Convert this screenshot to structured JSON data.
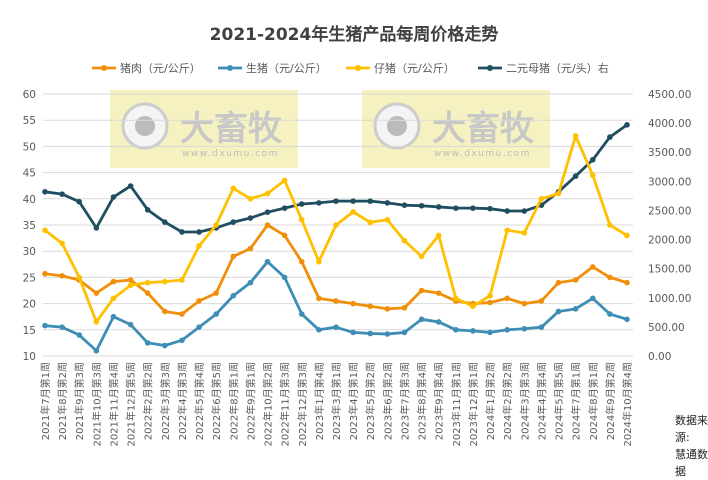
{
  "chart_data": {
    "type": "line",
    "title": "2021-2024年生猪产品每周价格走势",
    "source": [
      "数据来源:",
      "慧通数据"
    ],
    "watermark": {
      "logo_text": "大畜牧",
      "url_text": "www.dxumu.com"
    },
    "legend_position": "top",
    "grid": true,
    "y_left": {
      "ticks": [
        10,
        15,
        20,
        25,
        30,
        35,
        40,
        45,
        50,
        55,
        60
      ],
      "range": [
        10,
        60
      ]
    },
    "y_right": {
      "ticks": [
        "0.00",
        "500.00",
        "1000.00",
        "1500.00",
        "2000.00",
        "2500.00",
        "3000.00",
        "3500.00",
        "4000.00",
        "4500.00"
      ],
      "range": [
        0,
        4500
      ]
    },
    "categories": [
      "2021年7月第1周",
      "2021年8月第2周",
      "2021年9月第3周",
      "2021年10月第3周",
      "2021年11月第4周",
      "2021年12月第5周",
      "2022年2月第2周",
      "2022年3月第3周",
      "2022年4月第3周",
      "2022年5月第4周",
      "2022年6月第5周",
      "2022年8月第1周",
      "2022年9月第1周",
      "2022年10月第2周",
      "2022年11月第3周",
      "2022年12月第3周",
      "2023年1月第4周",
      "2023年3月第1周",
      "2023年4月第1周",
      "2023年5月第2周",
      "2023年6月第2周",
      "2023年7月第3周",
      "2023年8月第4周",
      "2023年9月第4周",
      "2023年11月第1周",
      "2023年12月第1周",
      "2024年1月第2周",
      "2024年2月第2周",
      "2024年3月第3周",
      "2024年4月第4周",
      "2024年5月第5周",
      "2024年7月第1周",
      "2024年8月第1周",
      "2024年9月第2周",
      "2024年10月第4周"
    ],
    "series": [
      {
        "name": "猪肉（元/公斤）",
        "axis": "left",
        "color": "#F0900A",
        "values": [
          25.7,
          25.3,
          24.5,
          22,
          24.2,
          24.5,
          22,
          18.5,
          18,
          20.5,
          22,
          29,
          30.5,
          35,
          33,
          28,
          21,
          20.5,
          20,
          19.5,
          19,
          19.2,
          22.5,
          22,
          20.5,
          20,
          20.2,
          21,
          20,
          20.5,
          24,
          24.5,
          27,
          25,
          24
        ]
      },
      {
        "name": "生猪（元/公斤）",
        "axis": "left",
        "color": "#3E8DB5",
        "values": [
          15.8,
          15.5,
          14,
          11,
          17.5,
          16,
          12.5,
          12,
          13,
          15.5,
          18,
          21.5,
          24,
          28,
          25,
          18,
          15,
          15.5,
          14.5,
          14.3,
          14.2,
          14.5,
          17,
          16.5,
          15,
          14.8,
          14.5,
          15,
          15.2,
          15.5,
          18.5,
          19,
          21,
          18,
          17
        ]
      },
      {
        "name": "仔猪（元/公斤）",
        "axis": "left",
        "color": "#FFC000",
        "values": [
          34,
          31.5,
          25,
          16.5,
          21,
          23.5,
          24,
          24.2,
          24.5,
          31,
          35,
          42,
          40,
          41,
          43.5,
          36,
          28,
          35,
          37.5,
          35.5,
          36,
          32,
          29,
          33,
          21,
          19.5,
          21.5,
          34,
          33.5,
          40,
          41,
          52,
          44.5,
          35,
          33
        ]
      },
      {
        "name": "二元母猪（元/头）右",
        "axis": "right",
        "color": "#1F4E60",
        "values": [
          2820,
          2780,
          2650,
          2200,
          2730,
          2920,
          2510,
          2300,
          2130,
          2130,
          2200,
          2300,
          2370,
          2470,
          2540,
          2610,
          2630,
          2660,
          2660,
          2660,
          2630,
          2590,
          2580,
          2560,
          2540,
          2540,
          2530,
          2490,
          2490,
          2590,
          2820,
          3090,
          3370,
          3760,
          3970
        ]
      }
    ]
  }
}
